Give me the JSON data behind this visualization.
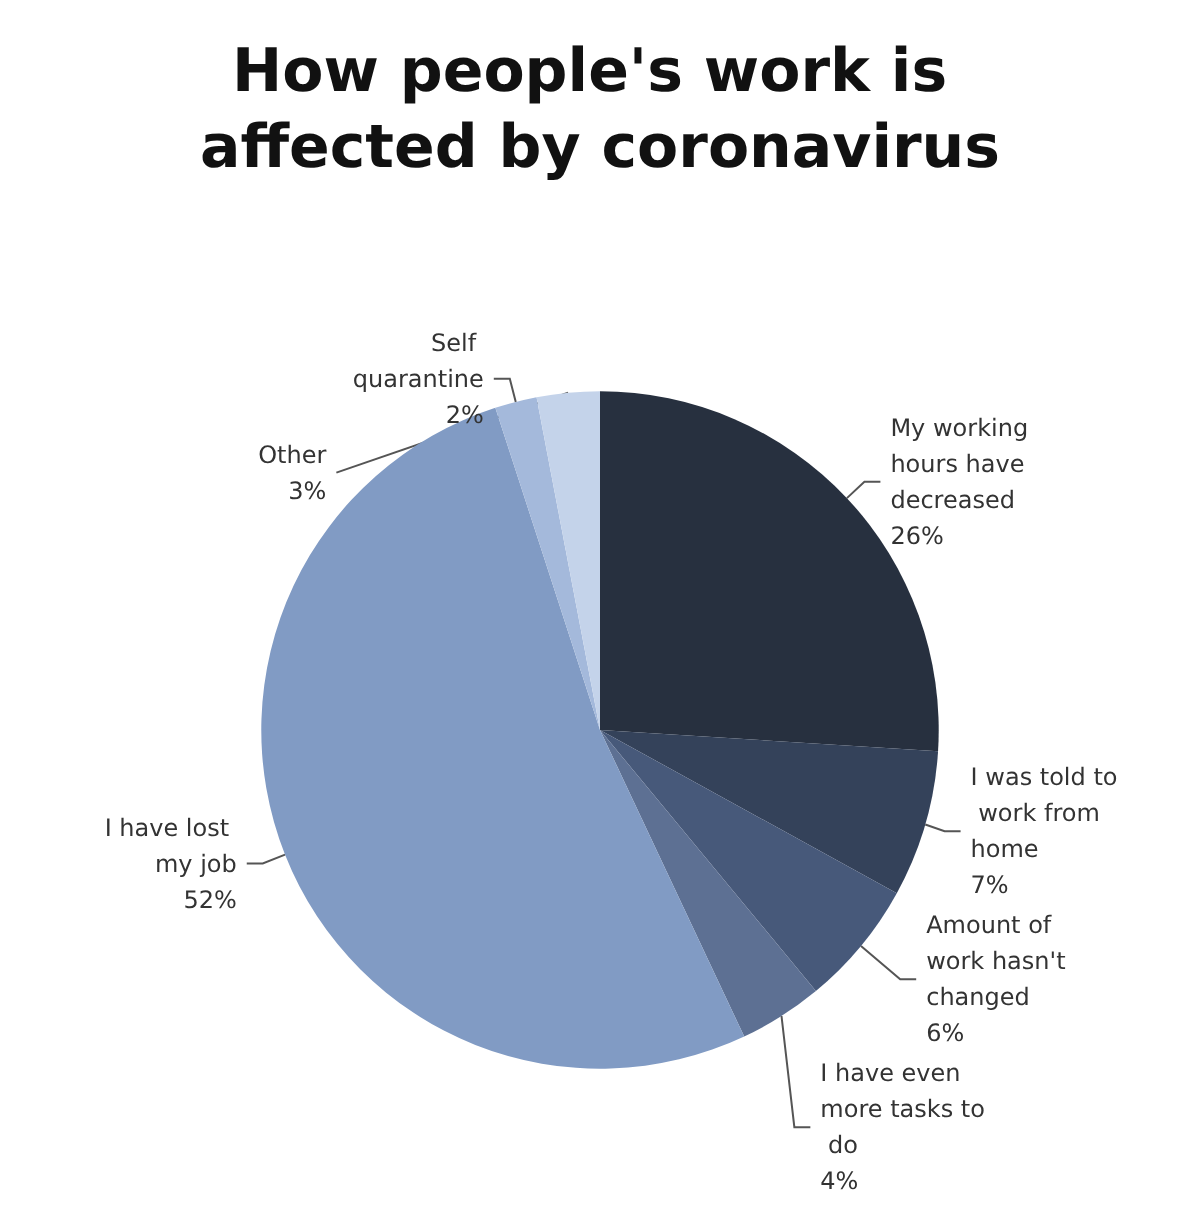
{
  "chart_data": {
    "type": "pie",
    "title": "How people's work is affected by coronavirus",
    "categories": [
      "My working hours have decreased",
      "I was told to work from home",
      "Amount of work hasn't changed",
      "I have even more tasks to do",
      "I have lost my job",
      "Self quarantine",
      "Other"
    ],
    "values": [
      26,
      7,
      6,
      4,
      52,
      2,
      3
    ],
    "value_labels": [
      "26%",
      "7%",
      "6%",
      "4%",
      "52%",
      "2%",
      "3%"
    ],
    "colors": [
      "#27303f",
      "#34425a",
      "#47597a",
      "#5d7093",
      "#819bc4",
      "#a4b9db",
      "#c4d3ea"
    ]
  }
}
